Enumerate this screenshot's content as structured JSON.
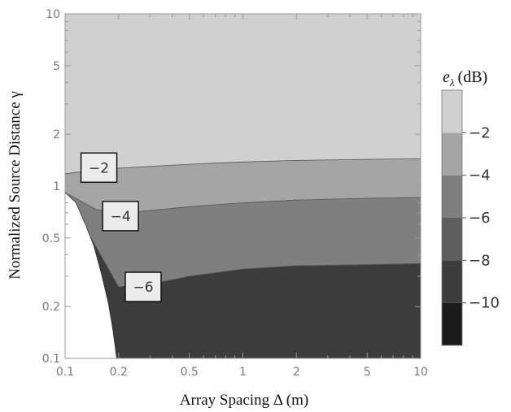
{
  "chart_data": {
    "type": "contour",
    "title": "",
    "xlabel": "Array Spacing Δ (m)",
    "ylabel": "Normalized Source Distance γ",
    "xscale": "log",
    "yscale": "log",
    "xlim": [
      0.1,
      10
    ],
    "ylim": [
      0.1,
      10
    ],
    "x_ticks": [
      {
        "value": 0.1,
        "label": "0.1"
      },
      {
        "value": 0.2,
        "label": "0.2"
      },
      {
        "value": 0.5,
        "label": "0.5"
      },
      {
        "value": 1,
        "label": "1"
      },
      {
        "value": 2,
        "label": "2"
      },
      {
        "value": 5,
        "label": "5"
      },
      {
        "value": 10,
        "label": "10"
      }
    ],
    "y_ticks": [
      {
        "value": 0.1,
        "label": "0.1"
      },
      {
        "value": 0.2,
        "label": "0.2"
      },
      {
        "value": 0.5,
        "label": "0.5"
      },
      {
        "value": 1,
        "label": "1"
      },
      {
        "value": 2,
        "label": "2"
      },
      {
        "value": 5,
        "label": "5"
      },
      {
        "value": 10,
        "label": "10"
      }
    ],
    "colorbar": {
      "title_main": "e",
      "title_sub": "λ",
      "title_unit": "(dB)",
      "levels": [
        -12,
        -10,
        -8,
        -6,
        -4,
        -2,
        0
      ],
      "tick_labels": [
        {
          "value": -10,
          "label": "−10"
        },
        {
          "value": -8,
          "label": "−8"
        },
        {
          "value": -6,
          "label": "−6"
        },
        {
          "value": -4,
          "label": "−4"
        },
        {
          "value": -2,
          "label": "−2"
        }
      ],
      "band_colors": [
        "#1c1c1c",
        "#3c3c3c",
        "#5e5e5e",
        "#7f7f7f",
        "#a5a5a5",
        "#d0d0d0"
      ]
    },
    "region_colors": {
      "above_minus2": "#d0d0d0",
      "minus4_to_minus2": "#a5a5a5",
      "minus6_to_minus4": "#7f7f7f",
      "below_minus6": "#3c3c3c",
      "undefined": "#ffffff"
    },
    "boundary": {
      "name": "region boundary",
      "points": [
        [
          0.1,
          0.92
        ],
        [
          0.115,
          0.8
        ],
        [
          0.13,
          0.6
        ],
        [
          0.145,
          0.45
        ],
        [
          0.16,
          0.31
        ],
        [
          0.175,
          0.21
        ],
        [
          0.185,
          0.15
        ],
        [
          0.195,
          0.1
        ]
      ]
    },
    "contours": [
      {
        "level": -2,
        "label": "−2",
        "points": [
          [
            0.1,
            1.18
          ],
          [
            0.15,
            1.24
          ],
          [
            0.2,
            1.27
          ],
          [
            0.3,
            1.3
          ],
          [
            0.5,
            1.34
          ],
          [
            1,
            1.38
          ],
          [
            2,
            1.41
          ],
          [
            5,
            1.43
          ],
          [
            10,
            1.44
          ]
        ]
      },
      {
        "level": -4,
        "label": "−4",
        "points": [
          [
            0.1,
            0.92
          ],
          [
            0.15,
            0.73
          ],
          [
            0.2,
            0.7
          ],
          [
            0.3,
            0.72
          ],
          [
            0.5,
            0.76
          ],
          [
            1,
            0.8
          ],
          [
            2,
            0.83
          ],
          [
            5,
            0.85
          ],
          [
            10,
            0.86
          ]
        ]
      },
      {
        "level": -6,
        "label": "−6",
        "points": [
          [
            0.14,
            0.5
          ],
          [
            0.2,
            0.26
          ],
          [
            0.3,
            0.27
          ],
          [
            0.5,
            0.3
          ],
          [
            1,
            0.33
          ],
          [
            2,
            0.345
          ],
          [
            5,
            0.35
          ],
          [
            10,
            0.355
          ]
        ]
      }
    ],
    "contour_labels": [
      {
        "text": "−2",
        "x": 0.155,
        "y": 1.28
      },
      {
        "text": "−4",
        "x": 0.205,
        "y": 0.67
      },
      {
        "text": "−6",
        "x": 0.275,
        "y": 0.26
      }
    ]
  }
}
